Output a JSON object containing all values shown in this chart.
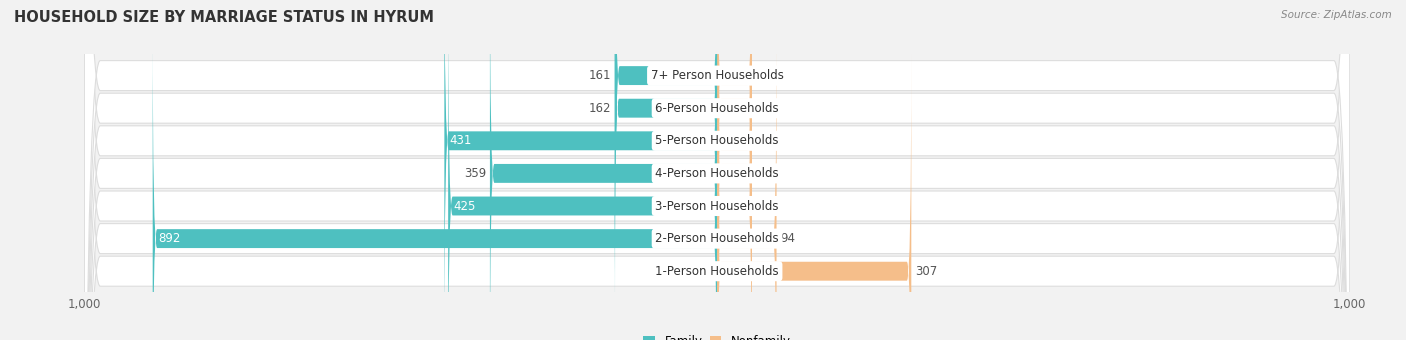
{
  "title": "HOUSEHOLD SIZE BY MARRIAGE STATUS IN HYRUM",
  "source": "Source: ZipAtlas.com",
  "categories": [
    "7+ Person Households",
    "6-Person Households",
    "5-Person Households",
    "4-Person Households",
    "3-Person Households",
    "2-Person Households",
    "1-Person Households"
  ],
  "family_values": [
    161,
    162,
    431,
    359,
    425,
    892,
    0
  ],
  "nonfamily_values": [
    0,
    0,
    0,
    0,
    19,
    94,
    307
  ],
  "family_color": "#4EC0C0",
  "nonfamily_color": "#F5BE8A",
  "axis_max": 1000,
  "background_color": "#f2f2f2",
  "row_bg_color": "#ffffff",
  "title_fontsize": 10.5,
  "label_fontsize": 8.5,
  "tick_fontsize": 8.5,
  "source_fontsize": 7.5
}
